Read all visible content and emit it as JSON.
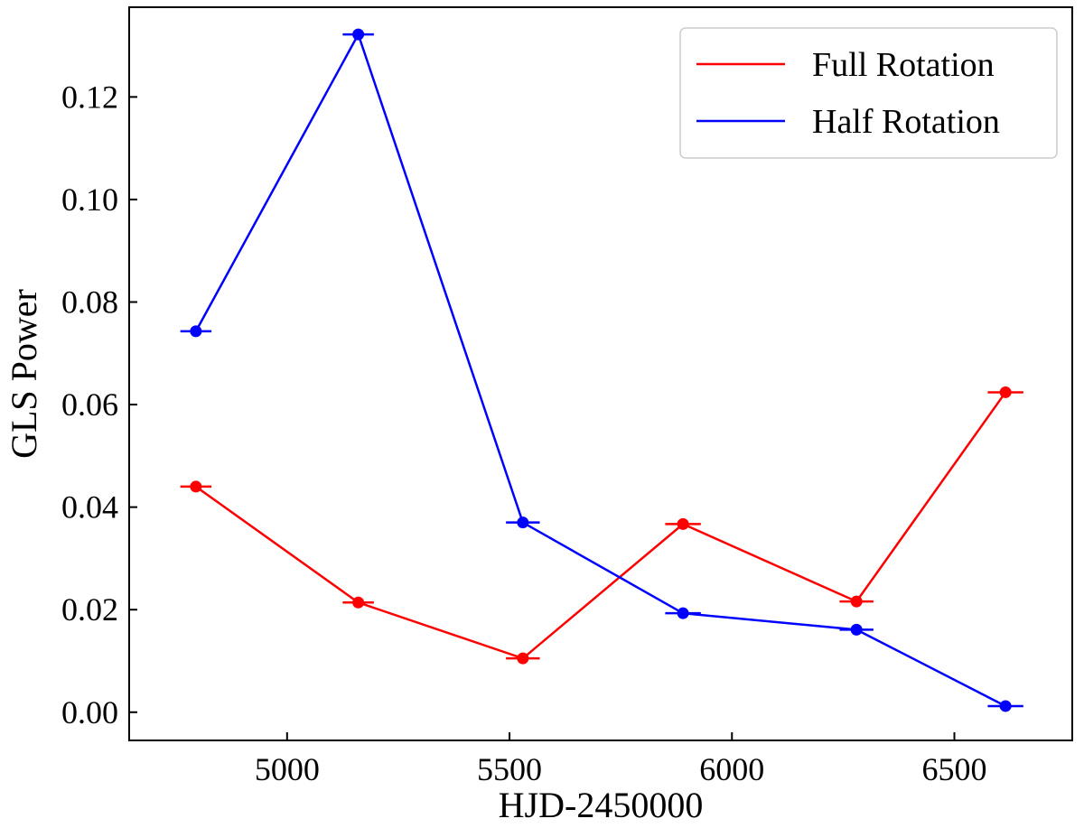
{
  "chart_data": {
    "type": "line",
    "xlabel": "HJD-2450000",
    "ylabel": "GLS Power",
    "xlim": [
      4645,
      6765
    ],
    "ylim": [
      -0.0055,
      0.1375
    ],
    "xticks": [
      5000,
      5500,
      6000,
      6500
    ],
    "xtick_labels": [
      "5000",
      "5500",
      "6000",
      "6500"
    ],
    "yticks": [
      0.0,
      0.02,
      0.04,
      0.06,
      0.08,
      0.1,
      0.12
    ],
    "ytick_labels": [
      "0.00",
      "0.02",
      "0.04",
      "0.06",
      "0.08",
      "0.10",
      "0.12"
    ],
    "grid": false,
    "legend_position": "top-right",
    "series": [
      {
        "name": "Full Rotation",
        "color": "#ff0000",
        "x": [
          4795,
          5160,
          5530,
          5890,
          6280,
          6615
        ],
        "y": [
          0.044,
          0.0214,
          0.0105,
          0.0367,
          0.0216,
          0.0624
        ],
        "x_err": [
          35,
          35,
          38,
          40,
          38,
          40
        ]
      },
      {
        "name": "Half Rotation",
        "color": "#0000ff",
        "x": [
          4795,
          5160,
          5530,
          5890,
          6280,
          6615
        ],
        "y": [
          0.0743,
          0.1322,
          0.037,
          0.0193,
          0.0161,
          0.0012
        ],
        "x_err": [
          35,
          35,
          38,
          40,
          38,
          40
        ]
      }
    ]
  }
}
